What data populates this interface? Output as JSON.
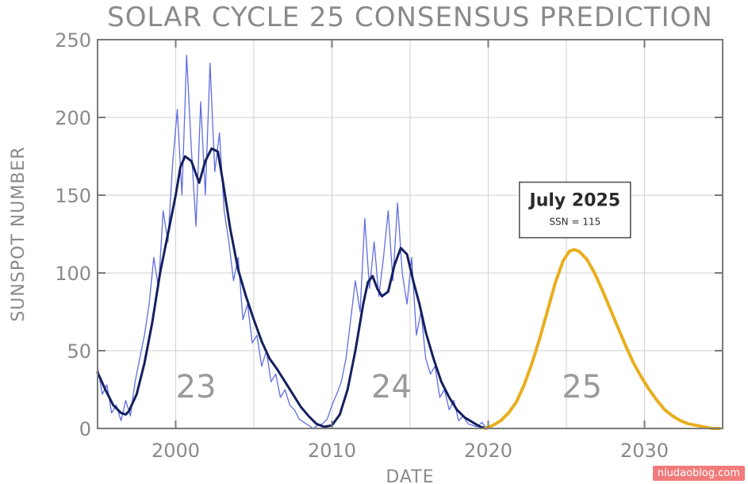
{
  "chart_data": {
    "type": "line",
    "title": "SOLAR CYCLE 25 CONSENSUS PREDICTION",
    "xlabel": "DATE",
    "ylabel": "SUNSPOT NUMBER",
    "xlim": [
      1995,
      2035
    ],
    "ylim": [
      0,
      250
    ],
    "xticks": [
      2000,
      2010,
      2020,
      2030
    ],
    "yticks": [
      0,
      50,
      100,
      150,
      200,
      250
    ],
    "grid": true,
    "colors": {
      "monthly": "#5f6de0",
      "smoothed": "#14205e",
      "prediction": "#e9ae1e",
      "grid": "#cfcfcf",
      "axis": "#7a7a7a"
    },
    "series": [
      {
        "key": "monthly",
        "x": [
          1995.0,
          1995.3,
          1995.6,
          1995.9,
          1996.2,
          1996.5,
          1996.8,
          1997.1,
          1997.4,
          1997.7,
          1998.0,
          1998.3,
          1998.6,
          1998.9,
          1999.2,
          1999.5,
          1999.8,
          2000.1,
          2000.4,
          2000.7,
          2001.0,
          2001.3,
          2001.6,
          2001.9,
          2002.2,
          2002.5,
          2002.8,
          2003.1,
          2003.4,
          2003.7,
          2004.0,
          2004.3,
          2004.6,
          2004.9,
          2005.2,
          2005.5,
          2005.8,
          2006.1,
          2006.4,
          2006.7,
          2007.0,
          2007.3,
          2007.6,
          2007.9,
          2008.2,
          2008.5,
          2008.8,
          2009.1,
          2009.4,
          2009.7,
          2010.0,
          2010.3,
          2010.6,
          2010.9,
          2011.2,
          2011.5,
          2011.8,
          2012.1,
          2012.4,
          2012.7,
          2013.0,
          2013.3,
          2013.6,
          2013.9,
          2014.2,
          2014.5,
          2014.8,
          2015.1,
          2015.4,
          2015.7,
          2016.0,
          2016.3,
          2016.6,
          2016.9,
          2017.2,
          2017.5,
          2017.8,
          2018.1,
          2018.4,
          2018.7,
          2019.0,
          2019.3,
          2019.6,
          2019.9
        ],
        "y": [
          40,
          22,
          28,
          10,
          15,
          5,
          18,
          8,
          30,
          45,
          60,
          80,
          110,
          90,
          140,
          120,
          170,
          205,
          150,
          240,
          180,
          130,
          210,
          150,
          235,
          165,
          190,
          140,
          120,
          95,
          110,
          70,
          80,
          55,
          60,
          40,
          50,
          30,
          35,
          20,
          25,
          15,
          12,
          6,
          4,
          2,
          0,
          2,
          3,
          6,
          15,
          22,
          30,
          45,
          70,
          95,
          75,
          135,
          90,
          120,
          85,
          110,
          140,
          95,
          145,
          100,
          80,
          110,
          60,
          75,
          45,
          35,
          40,
          20,
          25,
          12,
          18,
          5,
          8,
          3,
          2,
          1,
          4,
          0
        ]
      },
      {
        "key": "smoothed",
        "x": [
          1995.0,
          1995.5,
          1996.0,
          1996.5,
          1996.8,
          1997.0,
          1997.5,
          1998.0,
          1998.5,
          1999.0,
          1999.5,
          2000.0,
          2000.3,
          2000.6,
          2001.0,
          2001.5,
          2001.9,
          2002.3,
          2002.7,
          2003.0,
          2003.5,
          2004.0,
          2004.5,
          2005.0,
          2005.5,
          2006.0,
          2006.5,
          2007.0,
          2007.5,
          2008.0,
          2008.5,
          2009.0,
          2009.5,
          2010.0,
          2010.5,
          2011.0,
          2011.5,
          2012.0,
          2012.3,
          2012.6,
          2012.9,
          2013.2,
          2013.6,
          2014.0,
          2014.4,
          2014.8,
          2015.2,
          2015.6,
          2016.0,
          2016.5,
          2017.0,
          2017.5,
          2018.0,
          2018.5,
          2019.0,
          2019.5,
          2019.9
        ],
        "y": [
          36,
          25,
          15,
          10,
          9,
          11,
          22,
          42,
          68,
          100,
          125,
          150,
          168,
          175,
          172,
          158,
          172,
          180,
          178,
          160,
          128,
          102,
          85,
          70,
          56,
          45,
          38,
          30,
          22,
          14,
          8,
          3,
          1,
          2,
          9,
          25,
          50,
          80,
          94,
          98,
          90,
          85,
          88,
          105,
          116,
          112,
          95,
          80,
          62,
          45,
          30,
          20,
          12,
          7,
          4,
          1,
          0
        ]
      },
      {
        "key": "prediction",
        "x": [
          2019.8,
          2020.3,
          2020.8,
          2021.3,
          2021.8,
          2022.3,
          2022.8,
          2023.3,
          2023.8,
          2024.3,
          2024.8,
          2025.2,
          2025.5,
          2025.8,
          2026.3,
          2026.8,
          2027.3,
          2027.8,
          2028.3,
          2028.8,
          2029.3,
          2029.8,
          2030.3,
          2030.8,
          2031.3,
          2031.8,
          2032.3,
          2032.8,
          2033.3,
          2033.8,
          2034.3,
          2034.8
        ],
        "y": [
          0,
          2,
          5,
          10,
          17,
          28,
          42,
          58,
          76,
          94,
          108,
          114,
          115,
          114,
          109,
          100,
          89,
          77,
          65,
          53,
          42,
          33,
          25,
          18,
          12,
          8,
          5,
          3,
          2,
          1,
          0,
          0
        ]
      }
    ],
    "cycle_labels": [
      {
        "text": "23",
        "x": 2001.3,
        "y": 20
      },
      {
        "text": "24",
        "x": 2013.8,
        "y": 20
      },
      {
        "text": "25",
        "x": 2026.0,
        "y": 20
      }
    ],
    "annotation": {
      "title": "July 2025",
      "subtitle": "SSN = 115",
      "x": 2025.5,
      "y": 115
    }
  },
  "watermark": "niudaoblog.com"
}
